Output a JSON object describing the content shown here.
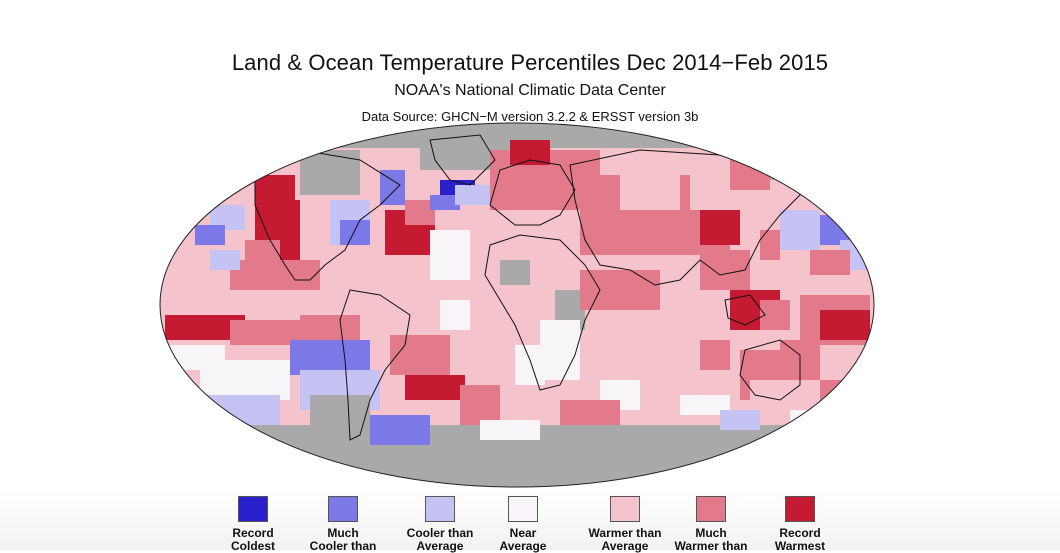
{
  "header": {
    "title": "Land & Ocean Temperature Percentiles Dec 2014−Feb 2015",
    "subtitle": "NOAA's National Climatic Data Center",
    "source": "Data Source: GHCN−M version 3.2.2 & ERSST version 3b"
  },
  "colors": {
    "record_coldest": "#2a1fcc",
    "much_cooler": "#7c78e8",
    "cooler": "#c5c3f4",
    "near_average": "#f7f5f7",
    "warmer": "#f5c3cb",
    "much_warmer": "#e27a8b",
    "record_warmest": "#c41a32",
    "no_data": "#a9a9a9",
    "outline": "#111111"
  },
  "legend": [
    {
      "label": "Record\nColdest",
      "color_key": "record_coldest"
    },
    {
      "label": "Much\nCooler than",
      "color_key": "much_cooler"
    },
    {
      "label": "Cooler than\nAverage",
      "color_key": "cooler"
    },
    {
      "label": "Near\nAverage",
      "color_key": "near_average"
    },
    {
      "label": "Warmer than\nAverage",
      "color_key": "warmer"
    },
    {
      "label": "Much\nWarmer than",
      "color_key": "much_warmer"
    },
    {
      "label": "Record\nWarmest",
      "color_key": "record_warmest"
    }
  ]
}
